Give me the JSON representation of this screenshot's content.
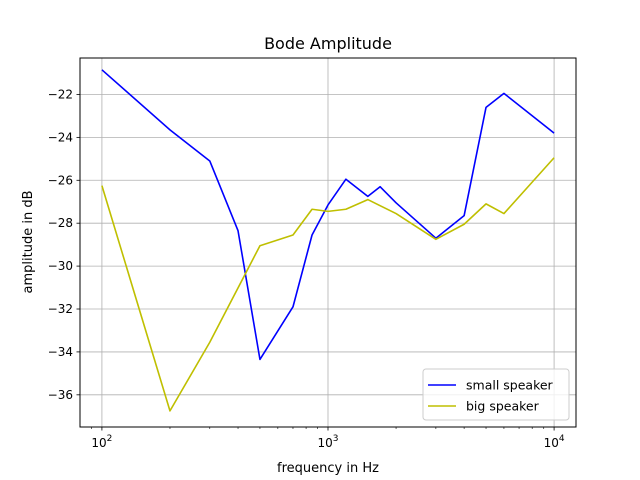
{
  "chart_data": {
    "type": "line",
    "title": "Bode Amplitude",
    "xlabel": "frequency in Hz",
    "ylabel": "amplitude in dB",
    "x_scale": "log",
    "xlim": [
      80,
      12500
    ],
    "ylim": [
      -37.5,
      -20.3
    ],
    "x_ticks": [
      {
        "value": 100,
        "base": "10",
        "exp": "2"
      },
      {
        "value": 1000,
        "base": "10",
        "exp": "3"
      },
      {
        "value": 10000,
        "base": "10",
        "exp": "4"
      }
    ],
    "y_ticks": [
      {
        "value": -22,
        "label": "−22"
      },
      {
        "value": -24,
        "label": "−24"
      },
      {
        "value": -26,
        "label": "−26"
      },
      {
        "value": -28,
        "label": "−28"
      },
      {
        "value": -30,
        "label": "−30"
      },
      {
        "value": -32,
        "label": "−32"
      },
      {
        "value": -34,
        "label": "−34"
      },
      {
        "value": -36,
        "label": "−36"
      }
    ],
    "grid": true,
    "legend_position": "lower-right",
    "series": [
      {
        "name": "small speaker",
        "color": "#0000ff",
        "x": [
          100,
          200,
          300,
          400,
          500,
          700,
          850,
          1000,
          1200,
          1500,
          1700,
          2000,
          3000,
          4000,
          5000,
          6000,
          10000
        ],
        "y": [
          -20.85,
          -23.65,
          -25.1,
          -28.35,
          -34.35,
          -31.9,
          -28.55,
          -27.15,
          -25.95,
          -26.75,
          -26.3,
          -27.05,
          -28.7,
          -27.65,
          -22.6,
          -21.95,
          -23.8
        ]
      },
      {
        "name": "big speaker",
        "color": "#bfbf00",
        "x": [
          100,
          200,
          300,
          500,
          700,
          850,
          1000,
          1200,
          1500,
          2000,
          3000,
          4000,
          5000,
          6000,
          10000
        ],
        "y": [
          -26.25,
          -36.75,
          -33.55,
          -29.05,
          -28.55,
          -27.35,
          -27.45,
          -27.35,
          -26.9,
          -27.55,
          -28.75,
          -28.05,
          -27.1,
          -27.55,
          -24.95
        ]
      }
    ]
  }
}
